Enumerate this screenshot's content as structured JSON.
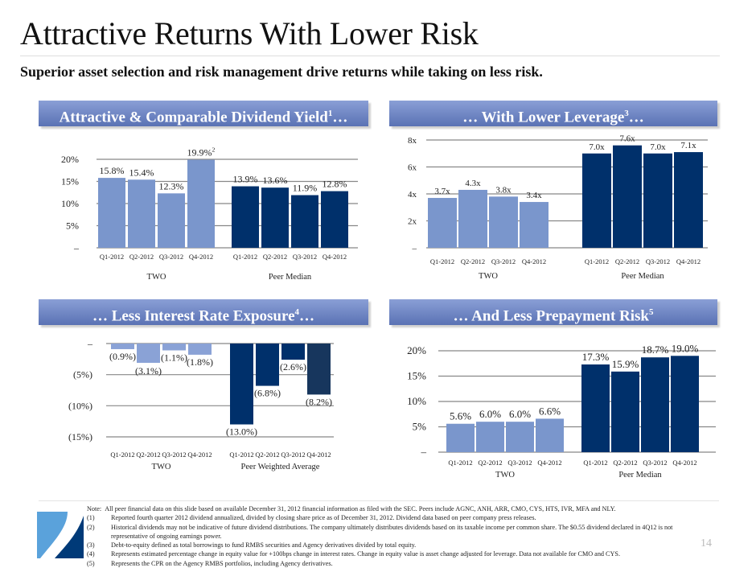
{
  "page": {
    "title": "Attractive Returns With Lower Risk",
    "subtitle": "Superior asset selection and risk management drive returns while taking on less risk.",
    "page_number": "14"
  },
  "colors": {
    "two": "#7a96cc",
    "peer": "#00306b",
    "peer_alt": "#17365d",
    "header_top": "#8a9fd6",
    "header_bottom": "#5a72b4",
    "grid": "#888888"
  },
  "panels": {
    "dividend": {
      "header_text": "Attractive & Comparable Dividend Yield",
      "header_sup": "1",
      "header_suffix": "…"
    },
    "leverage": {
      "header_text": "… With Lower Leverage",
      "header_sup": "3",
      "header_suffix": "…"
    },
    "interest": {
      "header_text": "… Less Interest Rate Exposure",
      "header_sup": "4",
      "header_suffix": "…"
    },
    "prepay": {
      "header_text": "… And Less Prepayment Risk",
      "header_sup": "5",
      "header_suffix": ""
    }
  },
  "chart_data": [
    {
      "id": "dividend",
      "type": "bar",
      "title": "Attractive & Comparable Dividend Yield",
      "categories": [
        "Q1-2012",
        "Q2-2012",
        "Q3-2012",
        "Q4-2012"
      ],
      "groups": [
        "TWO",
        "Peer Median"
      ],
      "series": [
        {
          "name": "TWO",
          "values": [
            15.8,
            15.4,
            12.3,
            19.9
          ],
          "labels": [
            "15.8%",
            "15.4%",
            "12.3%",
            "19.9%"
          ],
          "label_sup": [
            "",
            "",
            "",
            "2"
          ]
        },
        {
          "name": "Peer Median",
          "values": [
            13.9,
            13.6,
            11.9,
            12.8
          ],
          "labels": [
            "13.9%",
            "13.6%",
            "11.9%",
            "12.8%"
          ],
          "label_sup": [
            "",
            "",
            "",
            ""
          ]
        }
      ],
      "yticks": [
        {
          "v": 0,
          "label": "–"
        },
        {
          "v": 5,
          "label": "5%"
        },
        {
          "v": 10,
          "label": "10%"
        },
        {
          "v": 15,
          "label": "15%"
        },
        {
          "v": 20,
          "label": "20%"
        }
      ],
      "ylim": [
        0,
        20
      ],
      "grid": true,
      "xlabel": "",
      "ylabel": ""
    },
    {
      "id": "leverage",
      "type": "bar",
      "title": "With Lower Leverage",
      "categories": [
        "Q1-2012",
        "Q2-2012",
        "Q3-2012",
        "Q4-2012"
      ],
      "groups": [
        "TWO",
        "Peer Median"
      ],
      "series": [
        {
          "name": "TWO",
          "values": [
            3.7,
            4.3,
            3.8,
            3.4
          ],
          "labels": [
            "3.7x",
            "4.3x",
            "3.8x",
            "3.4x"
          ],
          "label_sup": [
            "",
            "",
            "",
            ""
          ]
        },
        {
          "name": "Peer Median",
          "values": [
            7.0,
            7.6,
            7.0,
            7.1
          ],
          "labels": [
            "7.0x",
            "7.6x",
            "7.0x",
            "7.1x"
          ],
          "label_sup": [
            "",
            "",
            "",
            ""
          ]
        }
      ],
      "yticks": [
        {
          "v": 0,
          "label": "–"
        },
        {
          "v": 2,
          "label": "2x"
        },
        {
          "v": 4,
          "label": "4x"
        },
        {
          "v": 6,
          "label": "6x"
        },
        {
          "v": 8,
          "label": "8x"
        }
      ],
      "ylim": [
        0,
        8
      ],
      "grid": true,
      "xlabel": "",
      "ylabel": ""
    },
    {
      "id": "interest",
      "type": "bar",
      "title": "Less Interest Rate Exposure",
      "categories": [
        "Q1-2012",
        "Q2-2012",
        "Q3-2012",
        "Q4-2012"
      ],
      "groups": [
        "TWO",
        "Peer Weighted Average"
      ],
      "series": [
        {
          "name": "TWO",
          "values": [
            -0.9,
            -3.1,
            -1.1,
            -1.8
          ],
          "labels": [
            "(0.9%)",
            "(3.1%)",
            "(1.1%)",
            "(1.8%)"
          ],
          "label_sup": [
            "",
            "",
            "",
            ""
          ]
        },
        {
          "name": "Peer Weighted Average",
          "values": [
            -13.0,
            -6.8,
            -2.6,
            -8.2
          ],
          "labels": [
            "(13.0%)",
            "(6.8%)",
            "(2.6%)",
            "(8.2%)"
          ],
          "label_sup": [
            "",
            "",
            "",
            ""
          ]
        }
      ],
      "yticks": [
        {
          "v": 0,
          "label": "–"
        },
        {
          "v": -5,
          "label": "(5%)"
        },
        {
          "v": -10,
          "label": "(10%)"
        },
        {
          "v": -15,
          "label": "(15%)"
        }
      ],
      "ylim": [
        -15,
        0
      ],
      "grid": true,
      "xlabel": "",
      "ylabel": ""
    },
    {
      "id": "prepay",
      "type": "bar",
      "title": "And Less Prepayment Risk",
      "categories": [
        "Q1-2012",
        "Q2-2012",
        "Q3-2012",
        "Q4-2012"
      ],
      "groups": [
        "TWO",
        "Peer Median"
      ],
      "series": [
        {
          "name": "TWO",
          "values": [
            5.6,
            6.0,
            6.0,
            6.6
          ],
          "labels": [
            "5.6%",
            "6.0%",
            "6.0%",
            "6.6%"
          ],
          "label_sup": [
            "",
            "",
            "",
            ""
          ]
        },
        {
          "name": "Peer Median",
          "values": [
            17.3,
            15.9,
            18.7,
            19.0
          ],
          "labels": [
            "17.3%",
            "15.9%",
            "18.7%",
            "19.0%"
          ],
          "label_sup": [
            "",
            "",
            "",
            ""
          ]
        }
      ],
      "yticks": [
        {
          "v": 0,
          "label": "–"
        },
        {
          "v": 5,
          "label": "5%"
        },
        {
          "v": 10,
          "label": "10%"
        },
        {
          "v": 15,
          "label": "15%"
        },
        {
          "v": 20,
          "label": "20%"
        }
      ],
      "ylim": [
        0,
        20
      ],
      "grid": true,
      "xlabel": "",
      "ylabel": ""
    }
  ],
  "notes": {
    "intro_label": "Note:",
    "intro": "All peer financial data on this slide based on available December 31, 2012 financial information as filed with the SEC.  Peers include AGNC, ANH,  ARR, CMO, CYS, HTS, IVR, MFA and NLY.",
    "items": [
      {
        "num": "(1)",
        "text": "Reported fourth quarter 2012 dividend annualized, divided by closing share price as of December 31, 2012. Dividend data based on peer company press releases."
      },
      {
        "num": "(2)",
        "text": "Historical dividends may not be indicative of future dividend distributions.  The company ultimately distributes dividends based on its taxable income per common share. The $0.55 dividend declared in 4Q12 is not representative of ongoing earnings power."
      },
      {
        "num": "(3)",
        "text": "Debt-to-equity defined as total borrowings to fund RMBS securities and Agency derivatives divided by total equity."
      },
      {
        "num": "(4)",
        "text": "Represents estimated percentage change in equity value for +100bps change in interest rates. Change in equity value is asset change adjusted for leverage. Data not available for CMO and CYS."
      },
      {
        "num": "(5)",
        "text": "Represents the CPR on the Agency RMBS portfolios, including Agency derivatives."
      }
    ]
  }
}
